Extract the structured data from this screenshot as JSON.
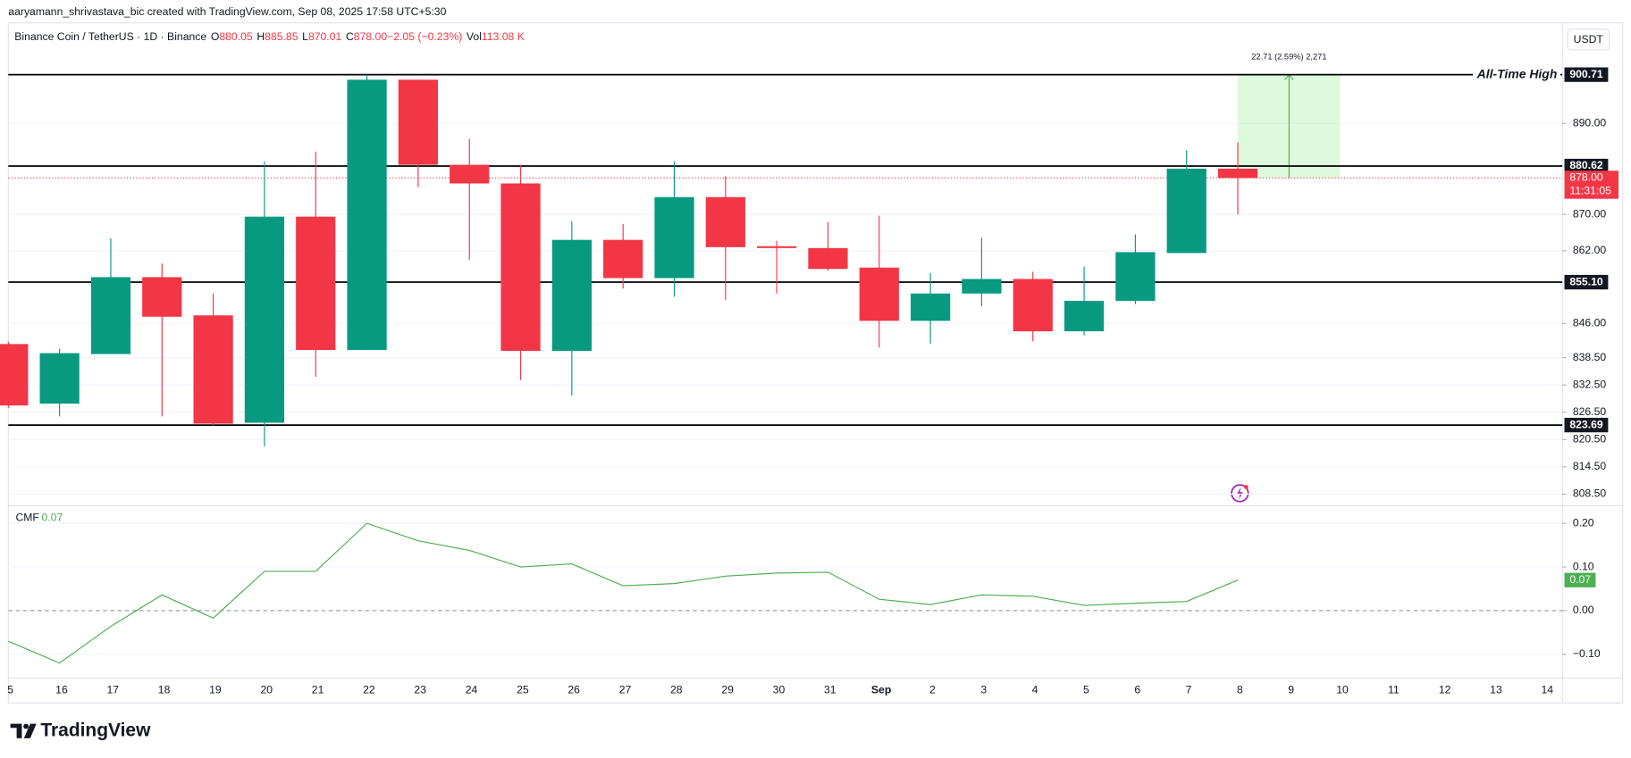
{
  "chart_data": {
    "type": "candlestick",
    "watermark": "aaryamann_shrivastava_bic created with TradingView.com, Sep 08, 2025 17:58 UTC+5:30",
    "legend": {
      "symbol": "Binance Coin / TetherUS · 1D · Binance",
      "o_label": "O",
      "open": "880.05",
      "h_label": "H",
      "high": "885.85",
      "l_label": "L",
      "low": "870.01",
      "c_label": "C",
      "close": "878.00",
      "change": "−2.05 (−0.23%)",
      "vol_label": "Vol",
      "volume": "113.08 K"
    },
    "currency": "USDT",
    "categories": [
      "5",
      "16",
      "17",
      "18",
      "19",
      "20",
      "21",
      "22",
      "23",
      "24",
      "25",
      "26",
      "27",
      "28",
      "29",
      "30",
      "31",
      "Sep",
      "2",
      "3",
      "4",
      "5",
      "6",
      "7",
      "8",
      "9",
      "10",
      "11",
      "12",
      "13",
      "14"
    ],
    "open": [
      841.5,
      828.4,
      839.3,
      856.2,
      847.8,
      824.2,
      869.5,
      840.2,
      899.6,
      880.9,
      876.8,
      840,
      864.4,
      856,
      873.8,
      863,
      862.6,
      858.3,
      846.6,
      852.6,
      855.8,
      844.3,
      851,
      861.5,
      880.05,
      null,
      null,
      null,
      null,
      null,
      null
    ],
    "high": [
      842,
      840.5,
      864.7,
      859.2,
      852.6,
      881.6,
      883.8,
      900.71,
      899.6,
      886.6,
      880.9,
      868.5,
      867.9,
      881.6,
      878.4,
      864.2,
      868.3,
      869.7,
      857.1,
      864.9,
      857.4,
      858.5,
      865.6,
      884.1,
      885.85,
      null,
      null,
      null,
      null,
      null,
      null
    ],
    "low": [
      827.5,
      825.6,
      839.3,
      825.6,
      823.6,
      819,
      834.3,
      840.2,
      876,
      860,
      833.6,
      830.2,
      853.7,
      851.9,
      851.2,
      852.6,
      857.6,
      840.7,
      841.6,
      849.8,
      842.1,
      843.4,
      850.3,
      861.5,
      870.01,
      null,
      null,
      null,
      null,
      null,
      null
    ],
    "close": [
      828,
      839.5,
      856.2,
      847.5,
      824,
      869.5,
      840.2,
      899.6,
      880.9,
      876.8,
      840,
      864.4,
      856,
      873.8,
      862.8,
      862.6,
      858,
      846.6,
      852.6,
      855.8,
      844.3,
      851,
      861.7,
      880.05,
      878,
      null,
      null,
      null,
      null,
      null,
      null
    ],
    "up_color": "#089981",
    "down_color": "#f23645",
    "ylim": [
      806.2,
      912.1
    ],
    "yticks": [
      {
        "value": 808.5,
        "label": "808.50"
      },
      {
        "value": 814.5,
        "label": "814.50"
      },
      {
        "value": 820.5,
        "label": "820.50"
      },
      {
        "value": 826.5,
        "label": "826.50"
      },
      {
        "value": 832.5,
        "label": "832.50"
      },
      {
        "value": 838.5,
        "label": "838.50"
      },
      {
        "value": 846,
        "label": "846.00"
      },
      {
        "value": 862,
        "label": "862.00"
      },
      {
        "value": 870,
        "label": "870.00"
      },
      {
        "value": 890,
        "label": "890.00"
      }
    ],
    "grid": true,
    "levels": [
      {
        "value": 900.71,
        "label": "900.71"
      },
      {
        "value": 880.62,
        "label": "880.62"
      },
      {
        "value": 855.1,
        "label": "855.10"
      },
      {
        "value": 823.69,
        "label": "823.69"
      }
    ],
    "level_annotation": "All-Time High",
    "last_price": {
      "value": 878,
      "label": "878.00",
      "countdown": "11:31:05"
    },
    "measure": {
      "from": 878,
      "to": 900.71,
      "label": "22.71 (2.59%) 2,271",
      "start": "8",
      "end": "10"
    },
    "indicator": {
      "name": "CMF",
      "color": "#4caf50",
      "values": [
        -0.07,
        -0.12,
        -0.036,
        0.036,
        -0.017,
        0.09,
        0.09,
        0.2,
        0.16,
        0.138,
        0.1,
        0.107,
        0.057,
        0.062,
        0.079,
        0.086,
        0.088,
        0.026,
        0.014,
        0.036,
        0.033,
        0.012,
        0.017,
        0.021,
        0.07,
        null,
        null,
        null,
        null,
        null,
        null
      ],
      "current": {
        "value": 0.07,
        "label": "0.07"
      },
      "ylim": [
        -0.152,
        0.238
      ],
      "yticks": [
        {
          "value": 0.2,
          "label": "0.20"
        },
        {
          "value": 0.1,
          "label": "0.10"
        },
        {
          "value": 0,
          "label": "0.00"
        },
        {
          "value": -0.1,
          "label": "−0.10"
        }
      ]
    },
    "brand": "TradingView"
  }
}
